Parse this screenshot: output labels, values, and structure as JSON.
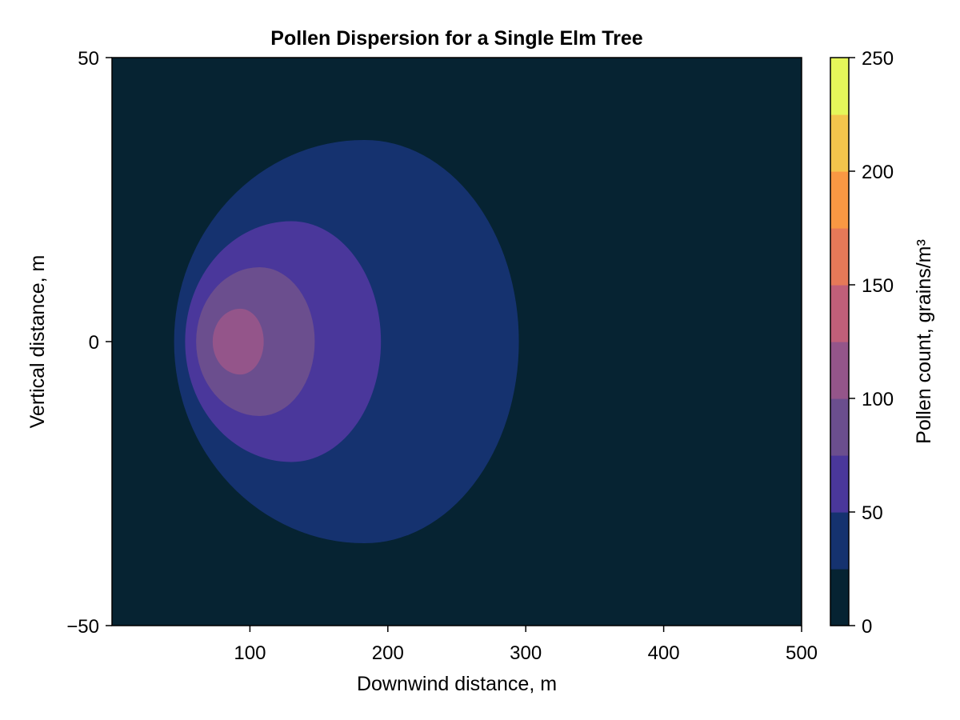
{
  "chart_data": {
    "type": "contourf",
    "title": "Pollen Dispersion for a Single Elm Tree",
    "xlabel": "Downwind distance, m",
    "ylabel": "Vertical distance, m",
    "xlim": [
      0,
      500
    ],
    "ylim": [
      -50,
      50
    ],
    "x_ticks": [
      100,
      200,
      300,
      400,
      500
    ],
    "x_tick_labels": [
      "100",
      "200",
      "300",
      "400",
      "500"
    ],
    "y_ticks": [
      -50,
      0,
      50
    ],
    "y_tick_labels": [
      "−50",
      "0",
      "50"
    ],
    "grid": false,
    "contours": [
      {
        "level_min": 0,
        "level_max": 25,
        "color": "#062332",
        "region": "background"
      },
      {
        "level_min": 25,
        "level_max": 50,
        "color": "#15326f",
        "x_min": 45,
        "x_peak": 183,
        "x_max": 295,
        "y_half": 35.5
      },
      {
        "level_min": 50,
        "level_max": 75,
        "color": "#4a379b",
        "x_min": 53,
        "x_peak": 130,
        "x_max": 195,
        "y_half": 21.2
      },
      {
        "level_min": 75,
        "level_max": 100,
        "color": "#6b4e8e",
        "x_min": 61,
        "x_peak": 107,
        "x_max": 147,
        "y_half": 13.1
      },
      {
        "level_min": 100,
        "level_max": 125,
        "color": "#94558a",
        "x_min": 73,
        "x_peak": 93,
        "x_max": 110,
        "y_half": 5.8
      }
    ],
    "colorbar": {
      "label": "Pollen count, grains/m³",
      "ticks": [
        0,
        50,
        100,
        150,
        200,
        250
      ],
      "tick_labels": [
        "0",
        "50",
        "100",
        "150",
        "200",
        "250"
      ],
      "levels": [
        0,
        25,
        50,
        75,
        100,
        125,
        150,
        175,
        200,
        225,
        250
      ],
      "colors": [
        "#062332",
        "#15326f",
        "#4a379b",
        "#6b4e8e",
        "#94558a",
        "#c05f79",
        "#e67958",
        "#f99843",
        "#f3c54c",
        "#e5f75a"
      ]
    }
  }
}
